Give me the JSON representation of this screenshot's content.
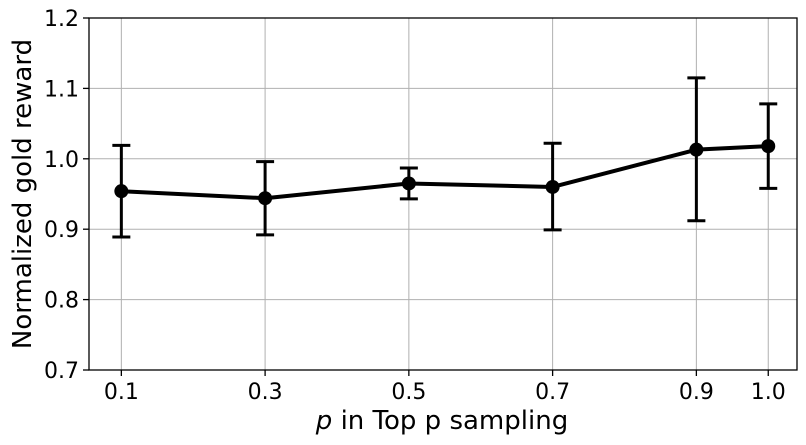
{
  "chart_data": {
    "type": "line",
    "title": "",
    "xlabel_var": "p",
    "xlabel_rest": " in Top p sampling",
    "ylabel": "Normalized gold reward",
    "x": [
      0.1,
      0.3,
      0.5,
      0.7,
      0.9,
      1.0
    ],
    "x_tick_labels": [
      "0.1",
      "0.3",
      "0.5",
      "0.7",
      "0.9",
      "1.0"
    ],
    "xlim": [
      0.055,
      1.04
    ],
    "ylim": [
      0.7,
      1.2
    ],
    "y_ticks": [
      0.7,
      0.8,
      0.9,
      1.0,
      1.1,
      1.2
    ],
    "y_tick_labels": [
      "0.7",
      "0.8",
      "0.9",
      "1.0",
      "1.1",
      "1.2"
    ],
    "series": [
      {
        "values": [
          0.954,
          0.944,
          0.965,
          0.96,
          1.013,
          1.018
        ],
        "err_low": [
          0.889,
          0.892,
          0.943,
          0.899,
          0.912,
          0.958
        ],
        "err_high": [
          1.019,
          0.996,
          0.987,
          1.022,
          1.115,
          1.078
        ]
      }
    ],
    "grid": true,
    "legend": "none",
    "colors": {
      "line": "#000000",
      "grid": "#b0b0b0",
      "axes": "#000000"
    }
  }
}
